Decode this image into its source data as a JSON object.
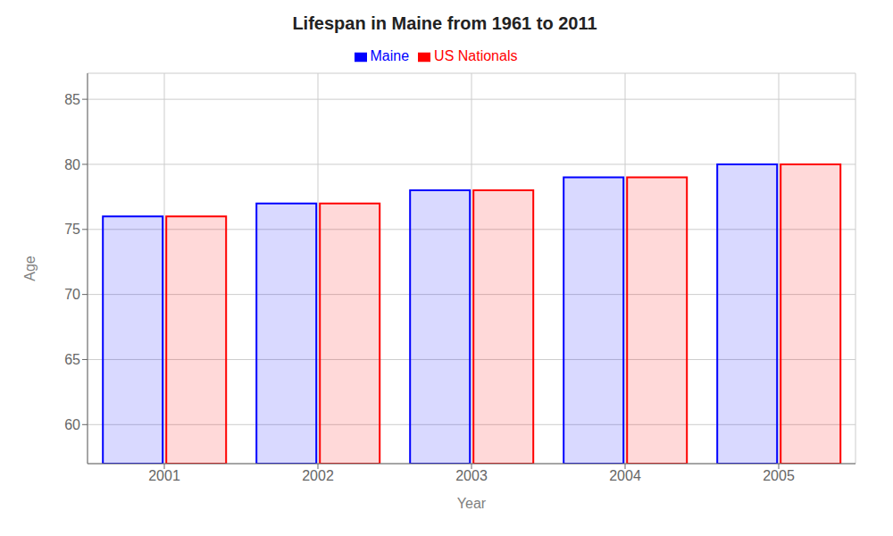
{
  "chart_data": {
    "type": "bar",
    "title": "Lifespan in Maine from 1961 to 2011",
    "x_label": "Year",
    "y_label": "Age",
    "categories": [
      "2001",
      "2002",
      "2003",
      "2004",
      "2005"
    ],
    "series": [
      {
        "name": "Maine",
        "color": "#0000ff",
        "values": [
          76.0,
          77.0,
          78.0,
          79.0,
          80.0
        ]
      },
      {
        "name": "US Nationals",
        "color": "#ff0000",
        "values": [
          76.0,
          77.0,
          78.0,
          79.0,
          80.0
        ]
      }
    ],
    "ylim": [
      57,
      87
    ],
    "yticks": [
      60,
      65,
      70,
      75,
      80,
      85
    ],
    "grid": true,
    "legend": "top"
  }
}
